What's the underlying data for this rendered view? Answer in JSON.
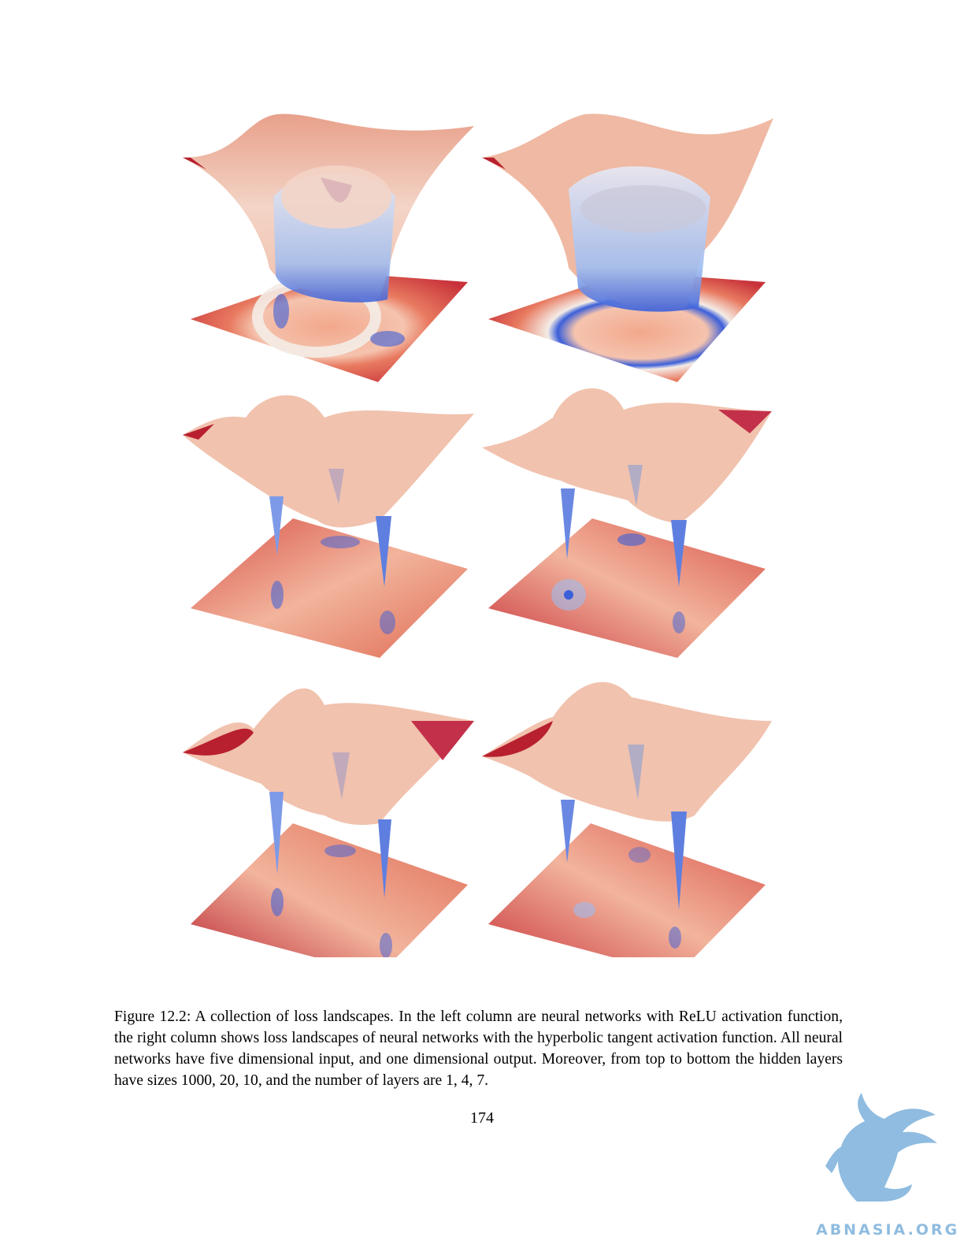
{
  "figure": {
    "panels": [
      {
        "id": "relu-1-layer-1000",
        "activation": "ReLU",
        "hidden_size": "1000",
        "layers": "1"
      },
      {
        "id": "tanh-1-layer-1000",
        "activation": "hyperbolic tangent",
        "hidden_size": "1000",
        "layers": "1"
      },
      {
        "id": "relu-4-layers-20",
        "activation": "ReLU",
        "hidden_size": "20",
        "layers": "4"
      },
      {
        "id": "tanh-4-layers-20",
        "activation": "hyperbolic tangent",
        "hidden_size": "20",
        "layers": "4"
      },
      {
        "id": "relu-7-layers-10",
        "activation": "ReLU",
        "hidden_size": "10",
        "layers": "7"
      },
      {
        "id": "tanh-7-layers-10",
        "activation": "hyperbolic tangent",
        "hidden_size": "10",
        "layers": "7"
      }
    ],
    "colors": {
      "high": "#b8202f",
      "mid_high": "#e0705a",
      "mid": "#f2b49c",
      "neutral": "#f4ece6",
      "low": "#9fbdf0",
      "lowest": "#3b5fd9"
    }
  },
  "caption": "Figure 12.2: A collection of loss landscapes. In the left column are neural networks with ReLU activation function, the right column shows loss landscapes of neural networks with the hyperbolic tangent activation function. All neural networks have five dimensional input, and one dimensional output. Moreover, from top to bottom the hidden layers have sizes 1000, 20, 10, and the number of layers are 1, 4, 7.",
  "page_number": "174",
  "watermark": {
    "text": "ABNASIA.ORG",
    "color": "#8fbce0"
  }
}
